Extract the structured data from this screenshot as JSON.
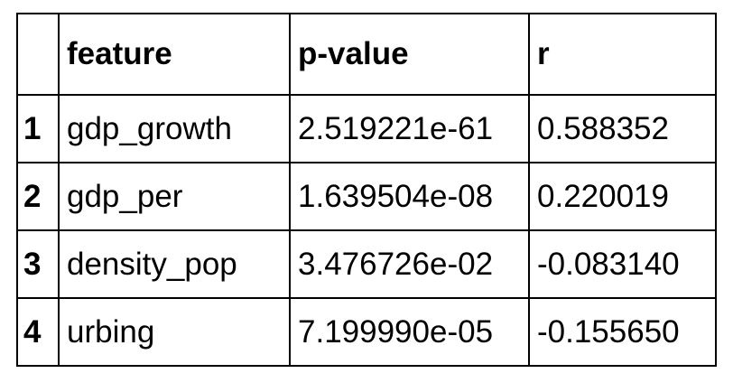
{
  "table": {
    "columns": [
      "",
      "feature",
      "p-value",
      "r"
    ],
    "rows": [
      {
        "index": "1",
        "feature": "gdp_growth",
        "p_value": "2.519221e-61",
        "r": "0.588352"
      },
      {
        "index": "2",
        "feature": "gdp_per",
        "p_value": "1.639504e-08",
        "r": "0.220019"
      },
      {
        "index": "3",
        "feature": "density_pop",
        "p_value": "3.476726e-02",
        "r": "-0.083140"
      },
      {
        "index": "4",
        "feature": "urbing",
        "p_value": "7.199990e-05",
        "r": "-0.155650"
      }
    ]
  }
}
